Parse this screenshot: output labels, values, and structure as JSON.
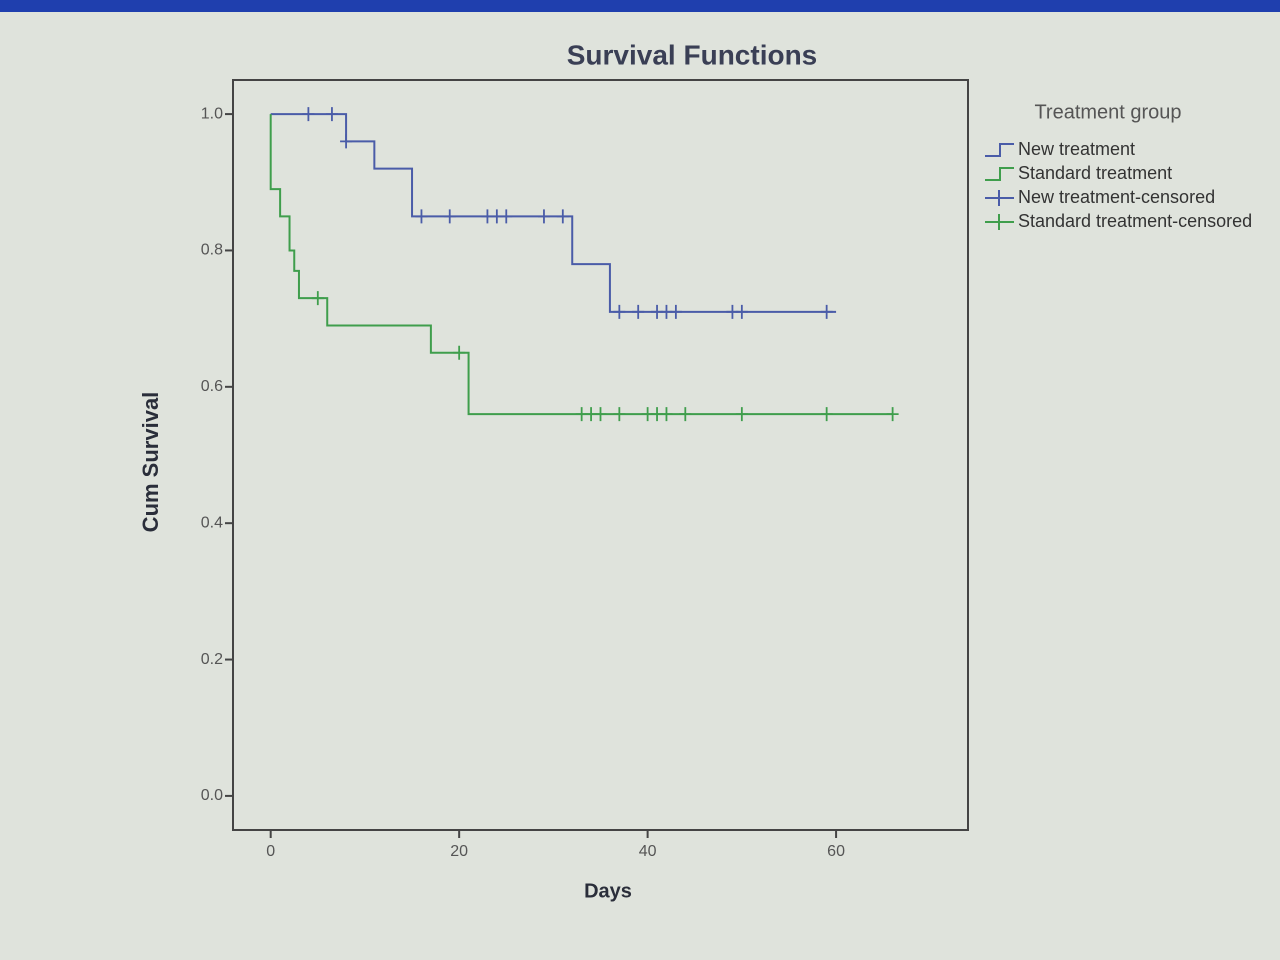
{
  "chart_data": {
    "type": "survival",
    "title": "Survival Functions",
    "x_label": "Days",
    "y_label": "Cum Survival",
    "legend_title": "Treatment group",
    "xlim": [
      -4,
      74
    ],
    "xticks": [
      0,
      20,
      40,
      60
    ],
    "ylim": [
      -0.05,
      1.05
    ],
    "yticks": [
      {
        "value": 0,
        "label": "0.0"
      },
      0.2,
      0.4,
      0.6,
      0.8,
      {
        "value": 1,
        "label": "1.0"
      }
    ],
    "series": [
      {
        "name": "New treatment",
        "kind": "step",
        "color": "#4a5ca8",
        "x": [
          0,
          8,
          11,
          15,
          32,
          36,
          60
        ],
        "values": [
          1,
          0.96,
          0.92,
          0.85,
          0.78,
          0.71,
          0.71
        ]
      },
      {
        "name": "Standard treatment",
        "kind": "step",
        "color": "#3f9e4c",
        "x": [
          0,
          0,
          1,
          2,
          2.5,
          3,
          6,
          17,
          21,
          66
        ],
        "values": [
          1,
          0.89,
          0.85,
          0.8,
          0.77,
          0.73,
          0.69,
          0.65,
          0.56,
          0.56
        ]
      },
      {
        "name": "New treatment-censored",
        "kind": "censor",
        "color": "#4a5ca8",
        "x": [
          4,
          6.5,
          8,
          16,
          19,
          23,
          24,
          25,
          29,
          31,
          37,
          39,
          41,
          42,
          43,
          49,
          50,
          59
        ],
        "values": [
          1,
          1,
          0.96,
          0.85,
          0.85,
          0.85,
          0.85,
          0.85,
          0.85,
          0.85,
          0.71,
          0.71,
          0.71,
          0.71,
          0.71,
          0.71,
          0.71,
          0.71
        ]
      },
      {
        "name": "Standard treatment-censored",
        "kind": "censor",
        "color": "#3f9e4c",
        "x": [
          5,
          20,
          33,
          34,
          35,
          37,
          40,
          41,
          42,
          44,
          50,
          59,
          66
        ],
        "values": [
          0.73,
          0.65,
          0.56,
          0.56,
          0.56,
          0.56,
          0.56,
          0.56,
          0.56,
          0.56,
          0.56,
          0.56,
          0.56
        ]
      }
    ]
  }
}
